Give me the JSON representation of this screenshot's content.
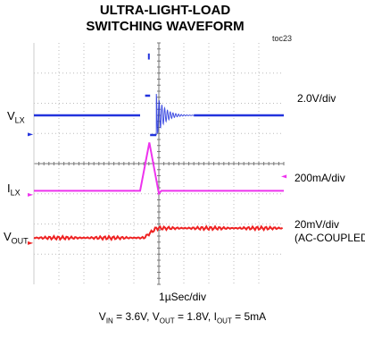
{
  "title_line1": "ULTRA-LIGHT-LOAD",
  "title_line2": "SWITCHING WAVEFORM",
  "toc_label": "toc23",
  "channels": [
    {
      "name": "V",
      "sub": "LX",
      "scale": "2.0V/div",
      "color": "#2233dd"
    },
    {
      "name": "I",
      "sub": "LX",
      "scale": "200mA/div",
      "color": "#ee33ee"
    },
    {
      "name": "V",
      "sub": "OUT",
      "scale": "20mV/div",
      "scale2": "(AC-COUPLED)",
      "color": "#ee2222"
    }
  ],
  "time_scale": "1µSec/div",
  "conditions": {
    "vin_label": "V",
    "vin_sub": "IN",
    "vin_value": " = 3.6V, ",
    "vout_label": "V",
    "vout_sub": "OUT",
    "vout_value": " = 1.8V, ",
    "iout_label": "I",
    "iout_sub": "OUT",
    "iout_value": " = 5mA"
  },
  "chart_data": {
    "type": "line",
    "x_divisions": 10,
    "y_divisions": 8,
    "grid": true,
    "series": [
      {
        "name": "VLX",
        "level_div": 2.4,
        "events": "switching pulse near 4.3 div followed by damped ringing decaying by ~6 div"
      },
      {
        "name": "ILX",
        "level_div": 4.9,
        "events": "triangular current pulse peaking ~1.6 div above baseline at ~4.6 div"
      },
      {
        "name": "VOUT",
        "level_div": 6.4,
        "events": "step up of ~0.3 div at ~4.8 div, then flat"
      }
    ]
  }
}
